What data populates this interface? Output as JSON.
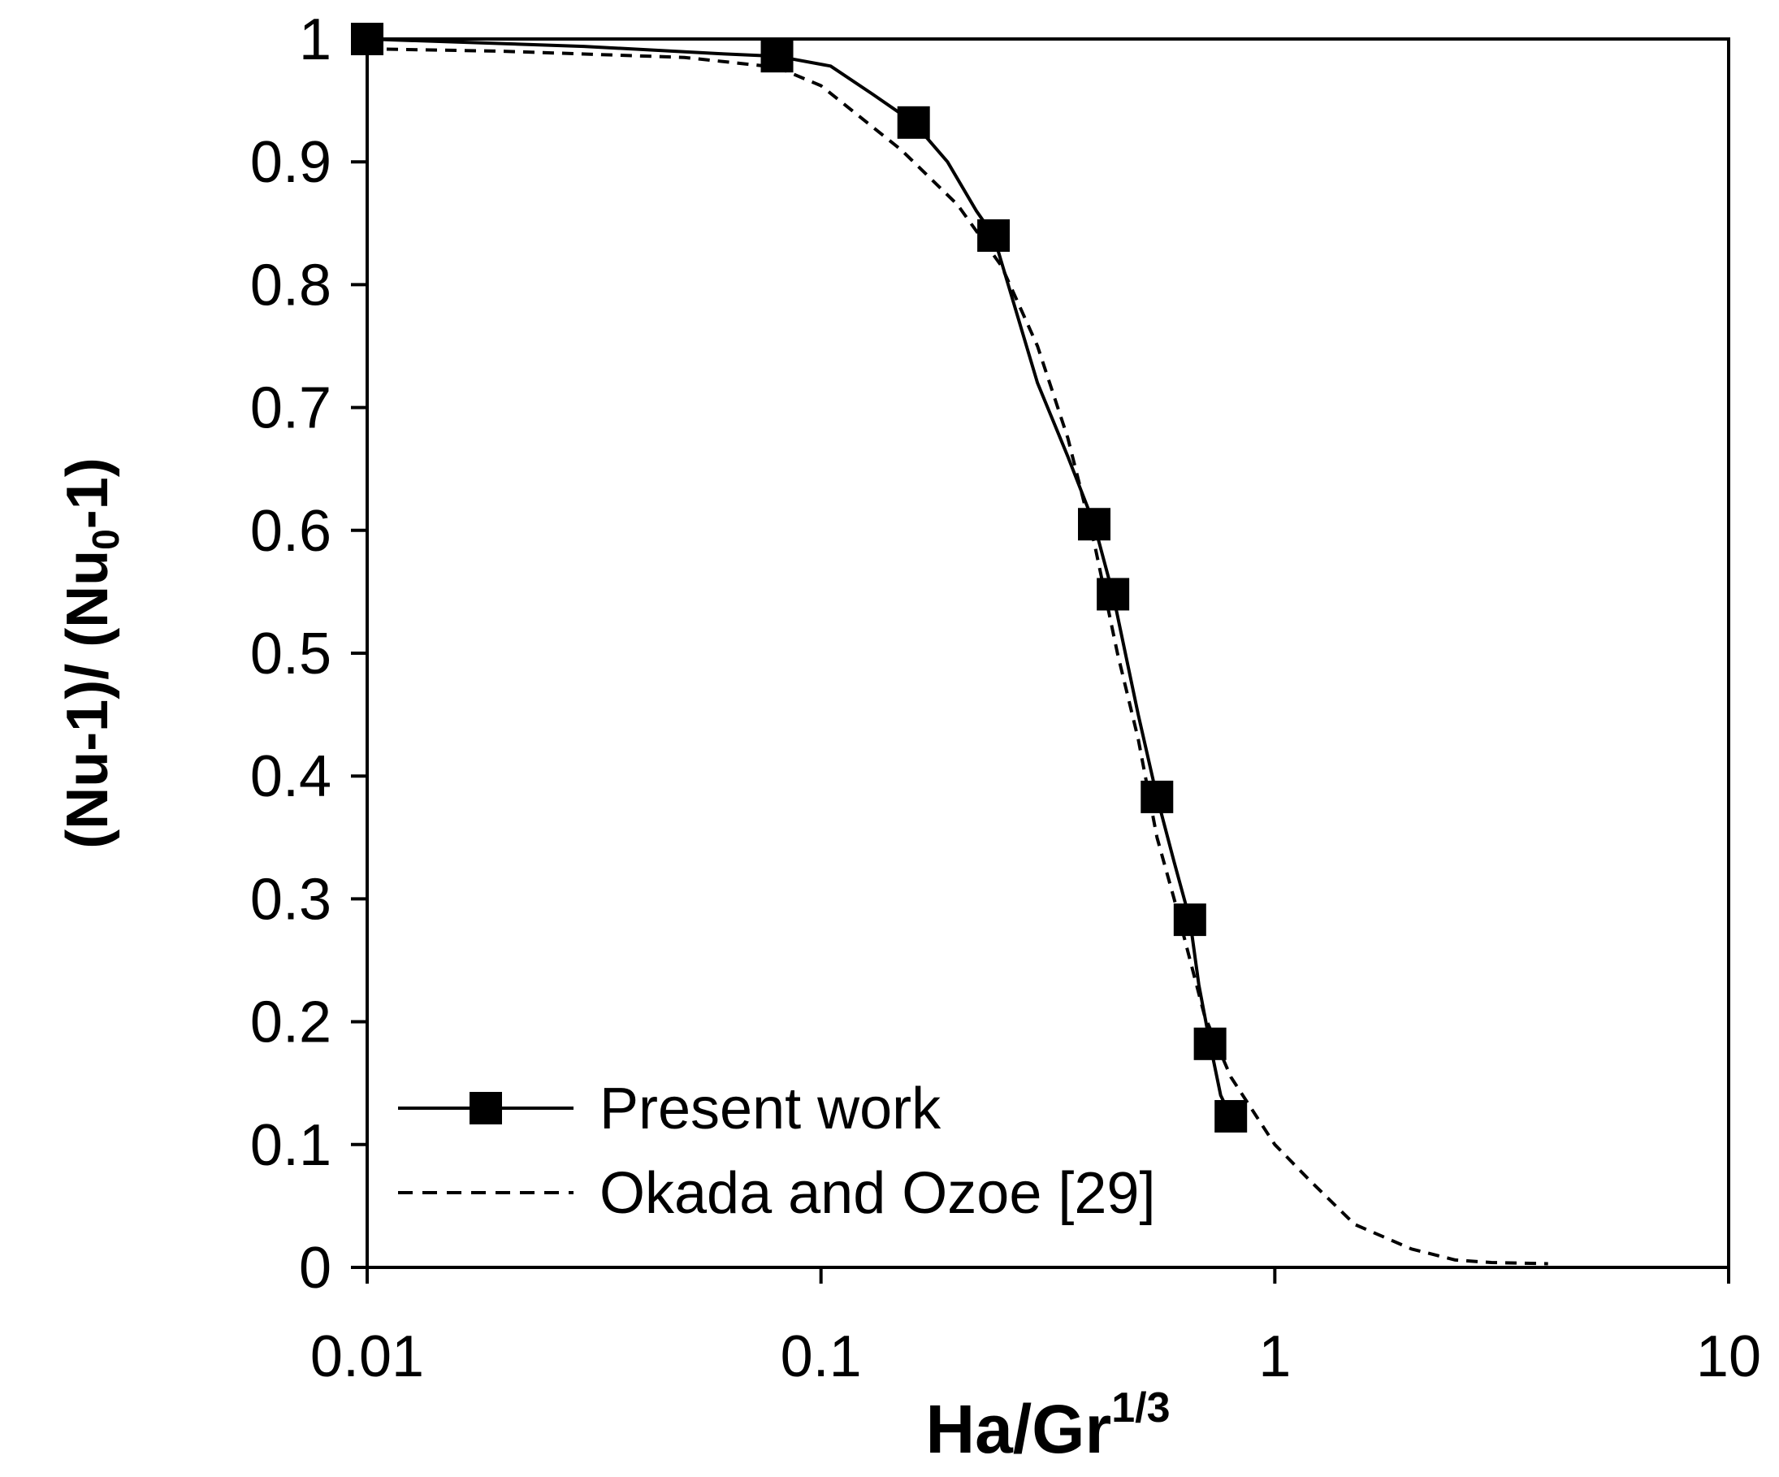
{
  "chart_data": {
    "type": "line",
    "xscale": "log",
    "xlim": [
      0.01,
      10
    ],
    "ylim": [
      0,
      1
    ],
    "grid": false,
    "legend_position": "bottom-left",
    "xlabel": {
      "main": "Ha/Gr",
      "sup": "1/3"
    },
    "ylabel": {
      "part1": "(Nu-1)/ (Nu",
      "sub": "0",
      "part2": "-1)"
    },
    "x_ticks": [
      {
        "value": 0.01,
        "label": "0.01"
      },
      {
        "value": 0.1,
        "label": "0.1"
      },
      {
        "value": 1,
        "label": "1"
      },
      {
        "value": 10,
        "label": "10"
      }
    ],
    "y_ticks": [
      {
        "value": 0,
        "label": "0"
      },
      {
        "value": 0.1,
        "label": "0.1"
      },
      {
        "value": 0.2,
        "label": "0.2"
      },
      {
        "value": 0.3,
        "label": "0.3"
      },
      {
        "value": 0.4,
        "label": "0.4"
      },
      {
        "value": 0.5,
        "label": "0.5"
      },
      {
        "value": 0.6,
        "label": "0.6"
      },
      {
        "value": 0.7,
        "label": "0.7"
      },
      {
        "value": 0.8,
        "label": "0.8"
      },
      {
        "value": 0.9,
        "label": "0.9"
      },
      {
        "value": 1,
        "label": "1"
      }
    ],
    "series": [
      {
        "name": "Present work",
        "style": "solid-square-markers",
        "color": "#000000",
        "line": [
          [
            0.01,
            1.0
          ],
          [
            0.03,
            0.994
          ],
          [
            0.06,
            0.988
          ],
          [
            0.08,
            0.986
          ],
          [
            0.105,
            0.978
          ],
          [
            0.13,
            0.955
          ],
          [
            0.16,
            0.932
          ],
          [
            0.19,
            0.9
          ],
          [
            0.22,
            0.86
          ],
          [
            0.24,
            0.84
          ],
          [
            0.3,
            0.72
          ],
          [
            0.35,
            0.66
          ],
          [
            0.4,
            0.605
          ],
          [
            0.44,
            0.548
          ],
          [
            0.5,
            0.45
          ],
          [
            0.55,
            0.383
          ],
          [
            0.6,
            0.33
          ],
          [
            0.65,
            0.283
          ],
          [
            0.68,
            0.23
          ],
          [
            0.72,
            0.182
          ],
          [
            0.76,
            0.14
          ],
          [
            0.8,
            0.123
          ]
        ],
        "markers": [
          [
            0.01,
            1.0
          ],
          [
            0.08,
            0.986
          ],
          [
            0.16,
            0.932
          ],
          [
            0.24,
            0.84
          ],
          [
            0.4,
            0.605
          ],
          [
            0.44,
            0.548
          ],
          [
            0.55,
            0.383
          ],
          [
            0.65,
            0.283
          ],
          [
            0.72,
            0.182
          ],
          [
            0.8,
            0.123
          ]
        ]
      },
      {
        "name": "Okada and Ozoe [29]",
        "style": "dashed",
        "color": "#000000",
        "line": [
          [
            0.01,
            0.992
          ],
          [
            0.02,
            0.99
          ],
          [
            0.05,
            0.985
          ],
          [
            0.08,
            0.977
          ],
          [
            0.1,
            0.962
          ],
          [
            0.15,
            0.91
          ],
          [
            0.2,
            0.865
          ],
          [
            0.25,
            0.815
          ],
          [
            0.3,
            0.75
          ],
          [
            0.35,
            0.675
          ],
          [
            0.4,
            0.59
          ],
          [
            0.45,
            0.5
          ],
          [
            0.5,
            0.43
          ],
          [
            0.55,
            0.35
          ],
          [
            0.6,
            0.3
          ],
          [
            0.7,
            0.205
          ],
          [
            0.8,
            0.155
          ],
          [
            1.0,
            0.1
          ],
          [
            1.2,
            0.07
          ],
          [
            1.5,
            0.035
          ],
          [
            2.0,
            0.015
          ],
          [
            2.5,
            0.006
          ],
          [
            3.0,
            0.004
          ],
          [
            4.0,
            0.003
          ]
        ]
      }
    ]
  }
}
